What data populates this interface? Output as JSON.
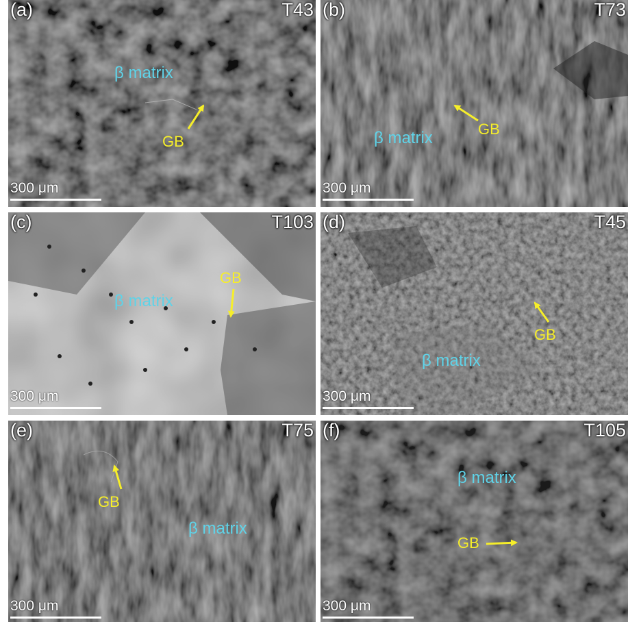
{
  "figure": {
    "scale_text": "300 μm",
    "matrix_label": "β matrix",
    "gb_label": "GB",
    "colors": {
      "matrix": "#5fd3e8",
      "gb": "#f6ee2a",
      "label": "#ffffff"
    },
    "panels": [
      {
        "id": "a",
        "label": "(a)",
        "sample": "T43"
      },
      {
        "id": "b",
        "label": "(b)",
        "sample": "T73"
      },
      {
        "id": "c",
        "label": "(c)",
        "sample": "T103"
      },
      {
        "id": "d",
        "label": "(d)",
        "sample": "T45"
      },
      {
        "id": "e",
        "label": "(e)",
        "sample": "T75"
      },
      {
        "id": "f",
        "label": "(f)",
        "sample": "T105"
      }
    ]
  }
}
